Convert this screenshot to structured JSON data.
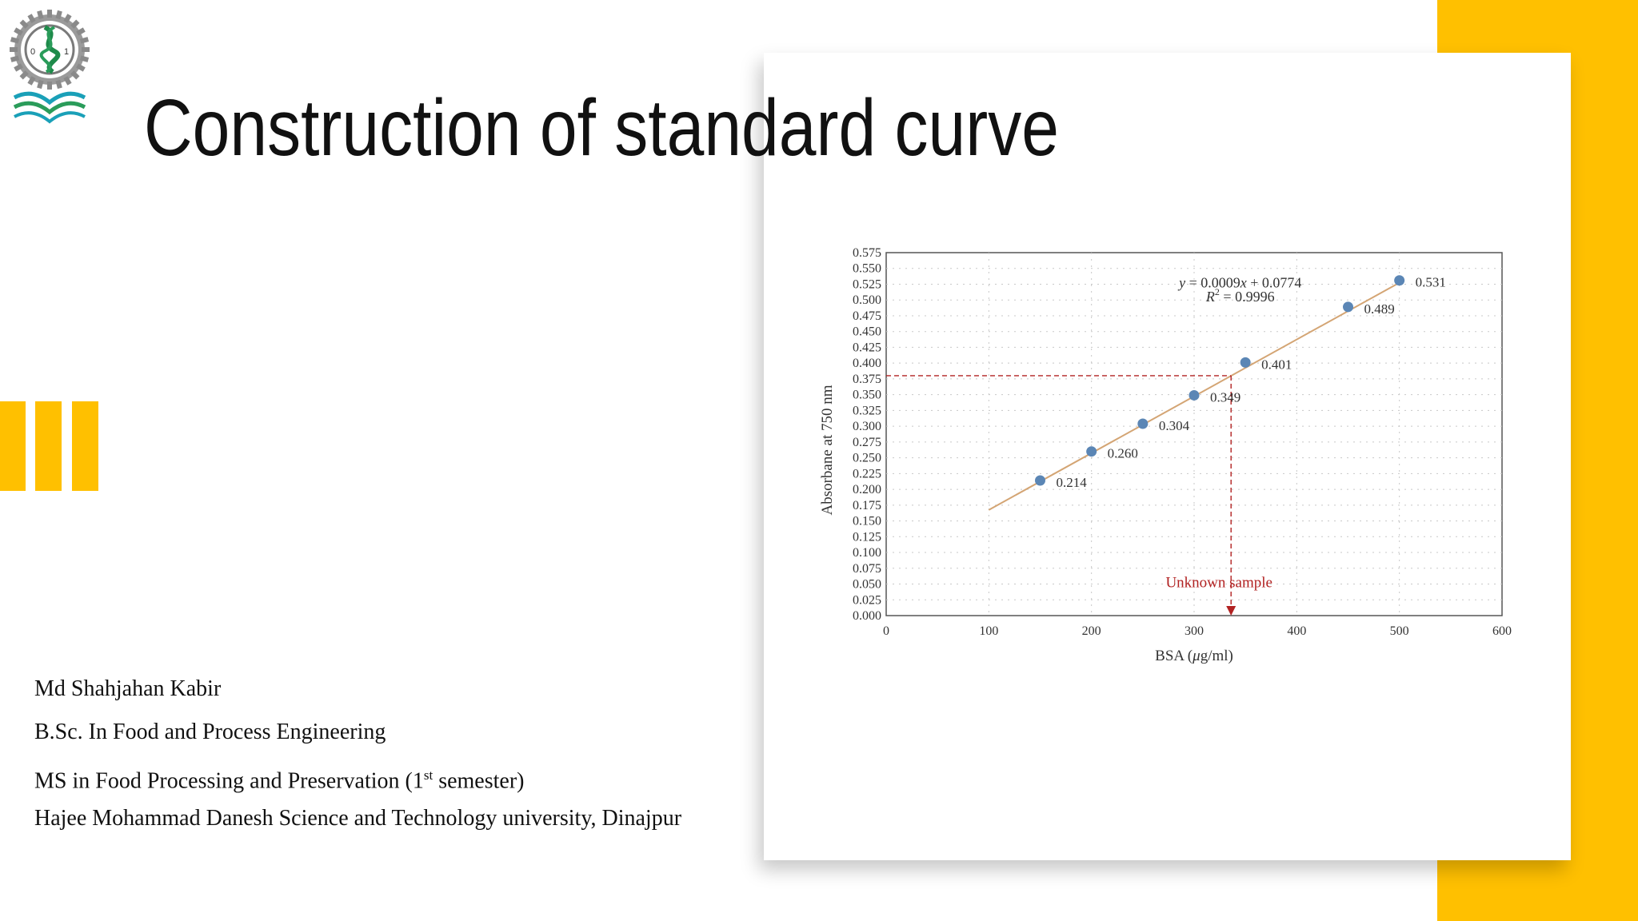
{
  "slide": {
    "title": "Construction of standard curve",
    "accent_color": "#FFC000",
    "logo": {
      "icon": "university-dna-gear-logo",
      "marks": [
        "0",
        "1"
      ]
    }
  },
  "author": {
    "name": "Md Shahjahan Kabir",
    "degree": "B.Sc. In Food and Process Engineering",
    "program_prefix": "MS in Food Processing and Preservation (1",
    "program_sup": "st",
    "program_suffix": " semester)",
    "university": "Hajee Mohammad Danesh Science and Technology university, Dinajpur"
  },
  "chart_data": {
    "type": "scatter",
    "xlabel_main": "BSA (",
    "xlabel_mu": "μ",
    "xlabel_unit": "g/ml)",
    "ylabel": "Absorbane at 750 nm",
    "xlim": [
      0,
      600
    ],
    "ylim": [
      0,
      0.575
    ],
    "xticks": [
      "0",
      "100",
      "200",
      "300",
      "400",
      "500",
      "600"
    ],
    "yticks": [
      "0.000",
      "0.025",
      "0.050",
      "0.075",
      "0.100",
      "0.125",
      "0.150",
      "0.175",
      "0.200",
      "0.225",
      "0.250",
      "0.275",
      "0.300",
      "0.325",
      "0.350",
      "0.375",
      "0.400",
      "0.425",
      "0.450",
      "0.475",
      "0.500",
      "0.525",
      "0.550",
      "0.575"
    ],
    "grid": true,
    "points": [
      {
        "x": 150,
        "y": 0.214,
        "label": "0.214"
      },
      {
        "x": 200,
        "y": 0.26,
        "label": "0.260"
      },
      {
        "x": 250,
        "y": 0.304,
        "label": "0.304"
      },
      {
        "x": 300,
        "y": 0.349,
        "label": "0.349"
      },
      {
        "x": 350,
        "y": 0.401,
        "label": "0.401"
      },
      {
        "x": 450,
        "y": 0.489,
        "label": "0.489"
      },
      {
        "x": 500,
        "y": 0.531,
        "label": "0.531"
      }
    ],
    "fit_line": {
      "x_start": 100,
      "x_end": 500,
      "slope": 0.0009,
      "intercept": 0.0774
    },
    "equation": {
      "y": "y",
      "y_rest": " = 0.0009",
      "x": "x",
      "x_rest": " + 0.0774",
      "r2_r": "R",
      "r2_exp": "2",
      "r2_rest": " = 0.9996"
    },
    "unknown": {
      "x": 336,
      "y": 0.38,
      "label": "Unknown sample"
    },
    "colors": {
      "point": "#5B86B5",
      "line": "#D4A574",
      "unknown": "#B22222",
      "axis": "#555555",
      "grid": "#C8C8C8"
    }
  }
}
